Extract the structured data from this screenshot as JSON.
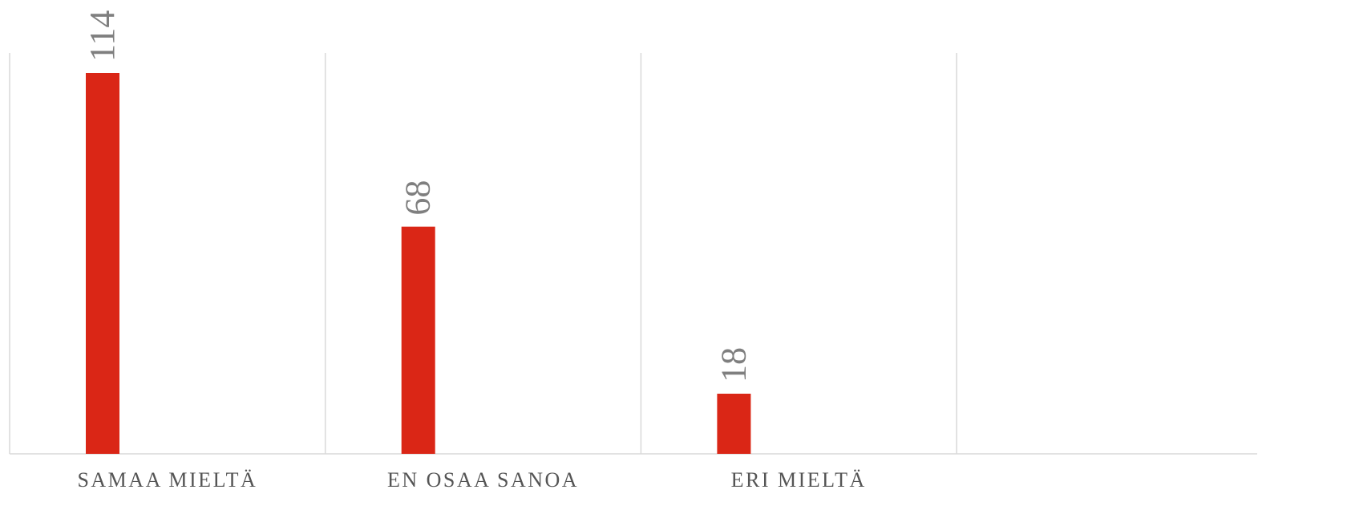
{
  "chart_data": {
    "type": "bar",
    "categories": [
      "SAMAA MIELTÄ",
      "EN OSAA SANOA",
      "ERI MIELTÄ",
      null
    ],
    "values": [
      114,
      68,
      18,
      null
    ],
    "color": "#da2616",
    "ylim": [
      0,
      120
    ]
  }
}
